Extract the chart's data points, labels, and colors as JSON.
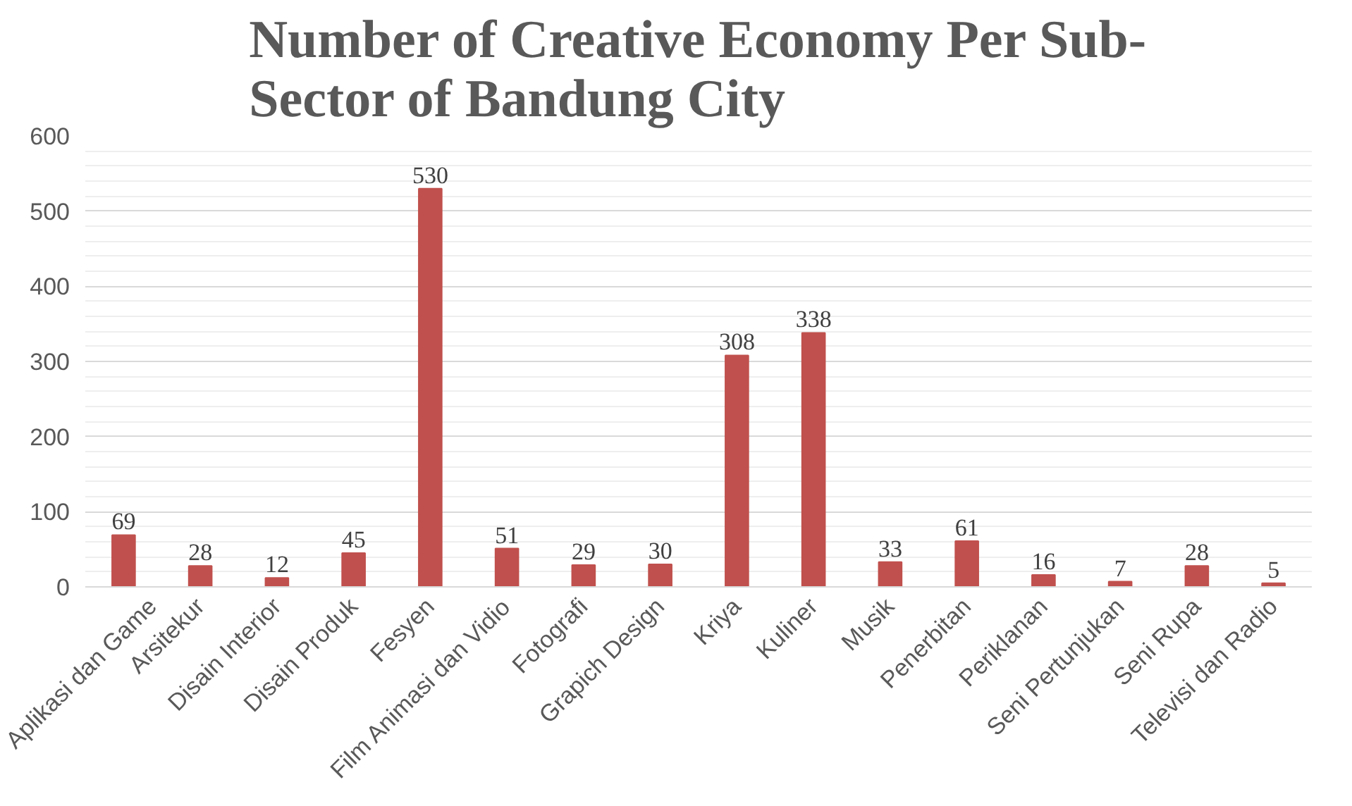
{
  "chart_data": {
    "type": "bar",
    "title": "Number of Creative Economy Per Sub-Sector of Bandung City",
    "categories": [
      "Aplikasi dan Game",
      "Arsitekur",
      "Disain Interior",
      "Disain Produk",
      "Fesyen",
      "Film Animasi dan Vidio",
      "Fotografi",
      "Grapich Design",
      "Kriya",
      "Kuliner",
      "Musik",
      "Penerbitan",
      "Periklanan",
      "Seni Pertunjukan",
      "Seni Rupa",
      "Televisi dan Radio"
    ],
    "values": [
      69,
      28,
      12,
      45,
      530,
      51,
      29,
      30,
      308,
      338,
      33,
      61,
      16,
      7,
      28,
      5
    ],
    "color": "#c0504d",
    "ylim": [
      0,
      600
    ],
    "yticks": [
      0,
      100,
      200,
      300,
      400,
      500,
      600
    ],
    "grid": "y",
    "data_labels": true
  }
}
